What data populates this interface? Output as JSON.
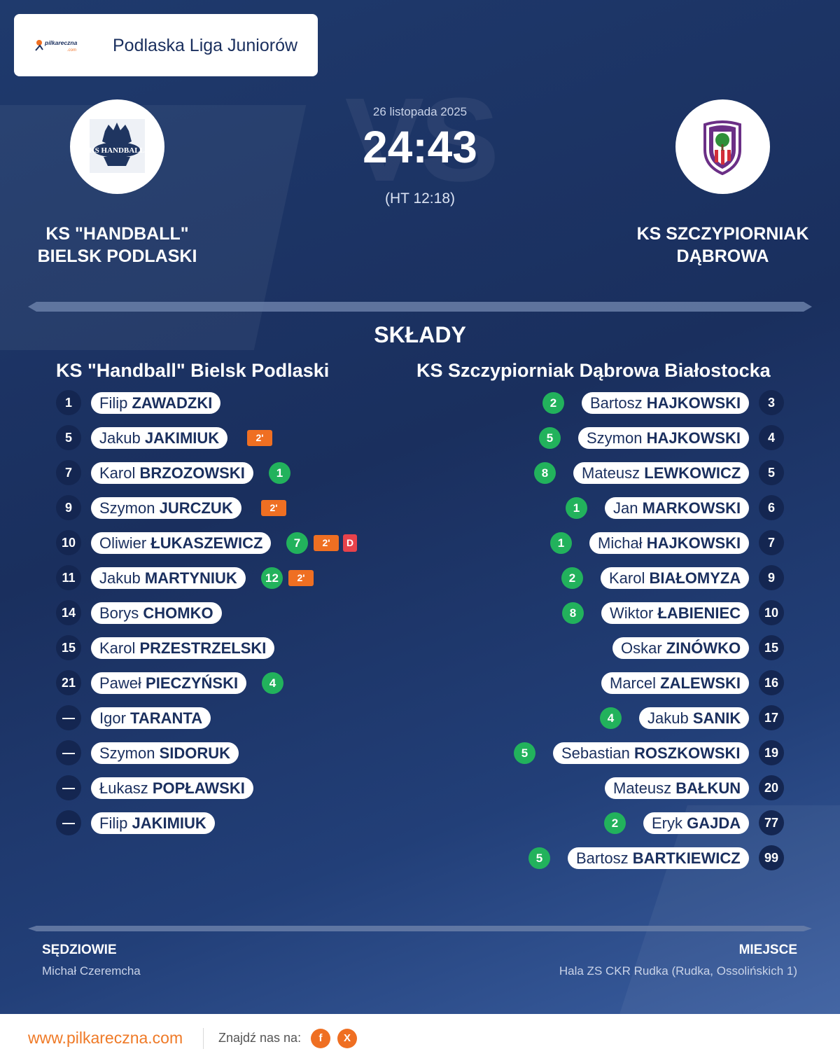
{
  "header": {
    "logo_text": "pilkareczna.com",
    "league": "Podlaska Liga Juniorów"
  },
  "match": {
    "date": "26 listopada 2025",
    "score": "24:43",
    "halftime": "(HT 12:18)",
    "vs_watermark": "VS"
  },
  "home": {
    "name": "KS \"HANDBALL\"\nBIELSK PODLASKI",
    "crest_text": "KS HANDBALL",
    "lineup_title": "KS \"Handball\" Bielsk Podlaski",
    "players": [
      {
        "num": "1",
        "first": "Filip",
        "last": "ZAWADZKI",
        "goals": "",
        "pens": 0,
        "red": ""
      },
      {
        "num": "5",
        "first": "Jakub",
        "last": "JAKIMIUK",
        "goals": "",
        "pens": 1,
        "red": ""
      },
      {
        "num": "7",
        "first": "Karol",
        "last": "BRZOZOWSKI",
        "goals": "1",
        "pens": 0,
        "red": ""
      },
      {
        "num": "9",
        "first": "Szymon",
        "last": "JURCZUK",
        "goals": "",
        "pens": 1,
        "red": ""
      },
      {
        "num": "10",
        "first": "Oliwier",
        "last": "ŁUKASZEWICZ",
        "goals": "7",
        "pens": 1,
        "red": "D"
      },
      {
        "num": "11",
        "first": "Jakub",
        "last": "MARTYNIUK",
        "goals": "12",
        "pens": 1,
        "red": ""
      },
      {
        "num": "14",
        "first": "Borys",
        "last": "CHOMKO",
        "goals": "",
        "pens": 0,
        "red": ""
      },
      {
        "num": "15",
        "first": "Karol",
        "last": "PRZESTRZELSKI",
        "goals": "",
        "pens": 0,
        "red": ""
      },
      {
        "num": "21",
        "first": "Paweł",
        "last": "PIECZYŃSKI",
        "goals": "4",
        "pens": 0,
        "red": ""
      },
      {
        "num": "—",
        "first": "Igor",
        "last": "TARANTA",
        "goals": "",
        "pens": 0,
        "red": ""
      },
      {
        "num": "—",
        "first": "Szymon",
        "last": "SIDORUK",
        "goals": "",
        "pens": 0,
        "red": ""
      },
      {
        "num": "—",
        "first": "Łukasz",
        "last": "POPŁAWSKI",
        "goals": "",
        "pens": 0,
        "red": ""
      },
      {
        "num": "—",
        "first": "Filip",
        "last": "JAKIMIUK",
        "goals": "",
        "pens": 0,
        "red": ""
      }
    ]
  },
  "away": {
    "name": "KS SZCZYPIORNIAK\nDĄBROWA",
    "lineup_title": "KS Szczypiorniak Dąbrowa Białostocka",
    "players": [
      {
        "num": "3",
        "first": "Bartosz",
        "last": "HAJKOWSKI",
        "goals": "2"
      },
      {
        "num": "4",
        "first": "Szymon",
        "last": "HAJKOWSKI",
        "goals": "5"
      },
      {
        "num": "5",
        "first": "Mateusz",
        "last": "LEWKOWICZ",
        "goals": "8"
      },
      {
        "num": "6",
        "first": "Jan",
        "last": "MARKOWSKI",
        "goals": "1"
      },
      {
        "num": "7",
        "first": "Michał",
        "last": "HAJKOWSKI",
        "goals": "1"
      },
      {
        "num": "9",
        "first": "Karol",
        "last": "BIAŁOMYZA",
        "goals": "2"
      },
      {
        "num": "10",
        "first": "Wiktor",
        "last": "ŁABIENIEC",
        "goals": "8"
      },
      {
        "num": "15",
        "first": "Oskar",
        "last": "ZINÓWKO",
        "goals": ""
      },
      {
        "num": "16",
        "first": "Marcel",
        "last": "ZALEWSKI",
        "goals": ""
      },
      {
        "num": "17",
        "first": "Jakub",
        "last": "SANIK",
        "goals": "4"
      },
      {
        "num": "19",
        "first": "Sebastian",
        "last": "ROSZKOWSKI",
        "goals": "5"
      },
      {
        "num": "20",
        "first": "Mateusz",
        "last": "BAŁKUN",
        "goals": ""
      },
      {
        "num": "77",
        "first": "Eryk",
        "last": "GAJDA",
        "goals": "2"
      },
      {
        "num": "99",
        "first": "Bartosz",
        "last": "BARTKIEWICZ",
        "goals": "5"
      }
    ]
  },
  "lineups_title": "SKŁADY",
  "penalty_label": "2'",
  "referees": {
    "label": "SĘDZIOWIE",
    "value": "Michał Czeremcha"
  },
  "venue": {
    "label": "MIEJSCE",
    "value": "Hala ZS CKR Rudka (Rudka, Ossolińskich 1)"
  },
  "footer": {
    "site": "www.pilkareczna.com",
    "find_us": "Znajdź nas na:",
    "social": [
      {
        "icon": "facebook-icon",
        "glyph": "f"
      },
      {
        "icon": "x-icon",
        "glyph": "X"
      }
    ]
  },
  "colors": {
    "bg": "#1a2f5e",
    "goal": "#22b25c",
    "penalty": "#ef6f22",
    "red_card": "#e8424b",
    "accent": "#ef7a27"
  }
}
